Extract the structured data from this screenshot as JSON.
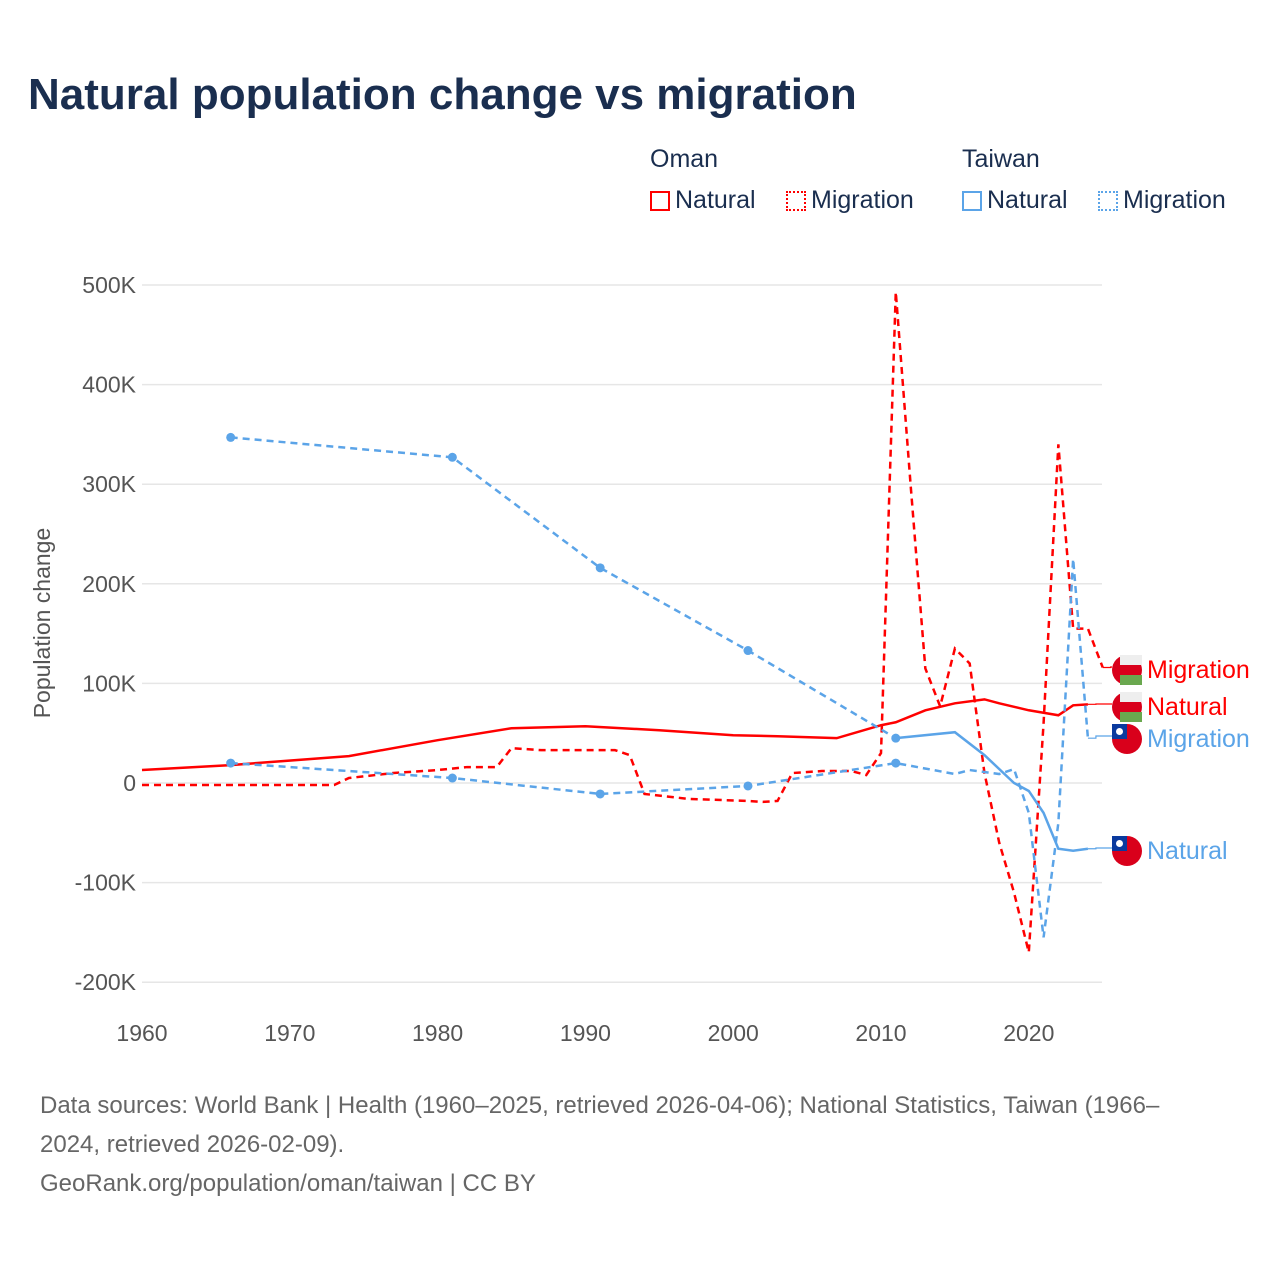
{
  "chart_data": {
    "type": "line",
    "title": "Natural population change vs migration",
    "ylabel": "Population change",
    "xlabel": "",
    "xlim": [
      1960,
      2025
    ],
    "ylim": [
      -200000,
      500000
    ],
    "x_ticks": [
      "1960",
      "1970",
      "1980",
      "1990",
      "2000",
      "2010",
      "2020"
    ],
    "y_ticks": [
      {
        "v": 500000,
        "l": "500K"
      },
      {
        "v": 400000,
        "l": "400K"
      },
      {
        "v": 300000,
        "l": "300K"
      },
      {
        "v": 200000,
        "l": "200K"
      },
      {
        "v": 100000,
        "l": "100K"
      },
      {
        "v": 0,
        "l": "0"
      },
      {
        "v": -100000,
        "l": "-100K"
      },
      {
        "v": -200000,
        "l": "-200K"
      }
    ],
    "grid": true,
    "legend": {
      "groups": [
        {
          "name": "Oman",
          "items": [
            "Natural",
            "Migration"
          ]
        },
        {
          "name": "Taiwan",
          "items": [
            "Natural",
            "Migration"
          ]
        }
      ],
      "placement": "top-right"
    },
    "series": [
      {
        "name": "Oman Natural",
        "label": "Natural",
        "color": "#ff0000",
        "dashed_until": null,
        "style": "solid",
        "markers": [],
        "x": [
          1960,
          1966,
          1974,
          1980,
          1985,
          1990,
          1995,
          2000,
          2003,
          2007,
          2010,
          2011,
          2013,
          2015,
          2017,
          2018,
          2020,
          2022,
          2023,
          2024
        ],
        "y": [
          13000,
          18000,
          27000,
          43000,
          55000,
          57000,
          53000,
          48000,
          47000,
          45000,
          58000,
          61000,
          73000,
          80000,
          84000,
          80000,
          73000,
          68000,
          78000,
          79000
        ]
      },
      {
        "name": "Oman Migration",
        "label": "Migration",
        "color": "#ff0000",
        "style": "dashed",
        "markers": [],
        "x": [
          1960,
          1973,
          1974,
          1977,
          1980,
          1982,
          1984,
          1985,
          1987,
          1992,
          1993,
          1994,
          1997,
          2001,
          2002,
          2003,
          2004,
          2006,
          2008,
          2009,
          2010,
          2011,
          2012,
          2013,
          2014,
          2015,
          2016,
          2017,
          2018,
          2019,
          2020,
          2021,
          2022,
          2023,
          2024,
          2025
        ],
        "y": [
          -2000,
          -2000,
          5000,
          10000,
          13000,
          16000,
          16000,
          35000,
          33000,
          33000,
          28000,
          -11000,
          -16000,
          -18000,
          -19000,
          -18000,
          10000,
          12000,
          12000,
          8000,
          30000,
          493000,
          300000,
          115000,
          77000,
          135000,
          120000,
          10000,
          -60000,
          -110000,
          -170000,
          60000,
          340000,
          155000,
          155000,
          116000
        ]
      },
      {
        "name": "Taiwan Natural",
        "label": "Natural",
        "color": "#5ba4e8",
        "style": "dashed-then-solid",
        "dashed_until": 2011,
        "markers": [
          1966,
          1981,
          1991,
          2001,
          2011
        ],
        "x": [
          1966,
          1981,
          1991,
          2001,
          2011,
          2015,
          2017,
          2019,
          2020,
          2021,
          2022,
          2023,
          2024
        ],
        "y": [
          347000,
          327000,
          216000,
          133000,
          45000,
          51000,
          28000,
          0,
          -8000,
          -30000,
          -66000,
          -68000,
          -66000
        ]
      },
      {
        "name": "Taiwan Migration",
        "label": "Migration",
        "color": "#5ba4e8",
        "style": "dashed",
        "markers": [
          1966,
          1981,
          1991,
          2001,
          2011
        ],
        "x": [
          1966,
          1981,
          1991,
          2001,
          2011,
          2015,
          2016,
          2018,
          2019,
          2020,
          2021,
          2022,
          2023,
          2024
        ],
        "y": [
          20000,
          5000,
          -11000,
          -3000,
          20000,
          9000,
          13000,
          9000,
          14000,
          -30000,
          -155000,
          -40000,
          225000,
          45000
        ]
      }
    ]
  },
  "colors": {
    "oman": "#ff0000",
    "taiwan": "#5ba4e8"
  },
  "end_labels": [
    "Migration",
    "Natural",
    "Migration",
    "Natural"
  ],
  "footer": {
    "line1": "Data sources: World Bank | Health (1960–2025, retrieved 2026-04-06); National Statistics, Taiwan (1966–",
    "line2": "2024, retrieved 2026-02-09).",
    "line3": "GeoRank.org/population/oman/taiwan | CC BY"
  }
}
